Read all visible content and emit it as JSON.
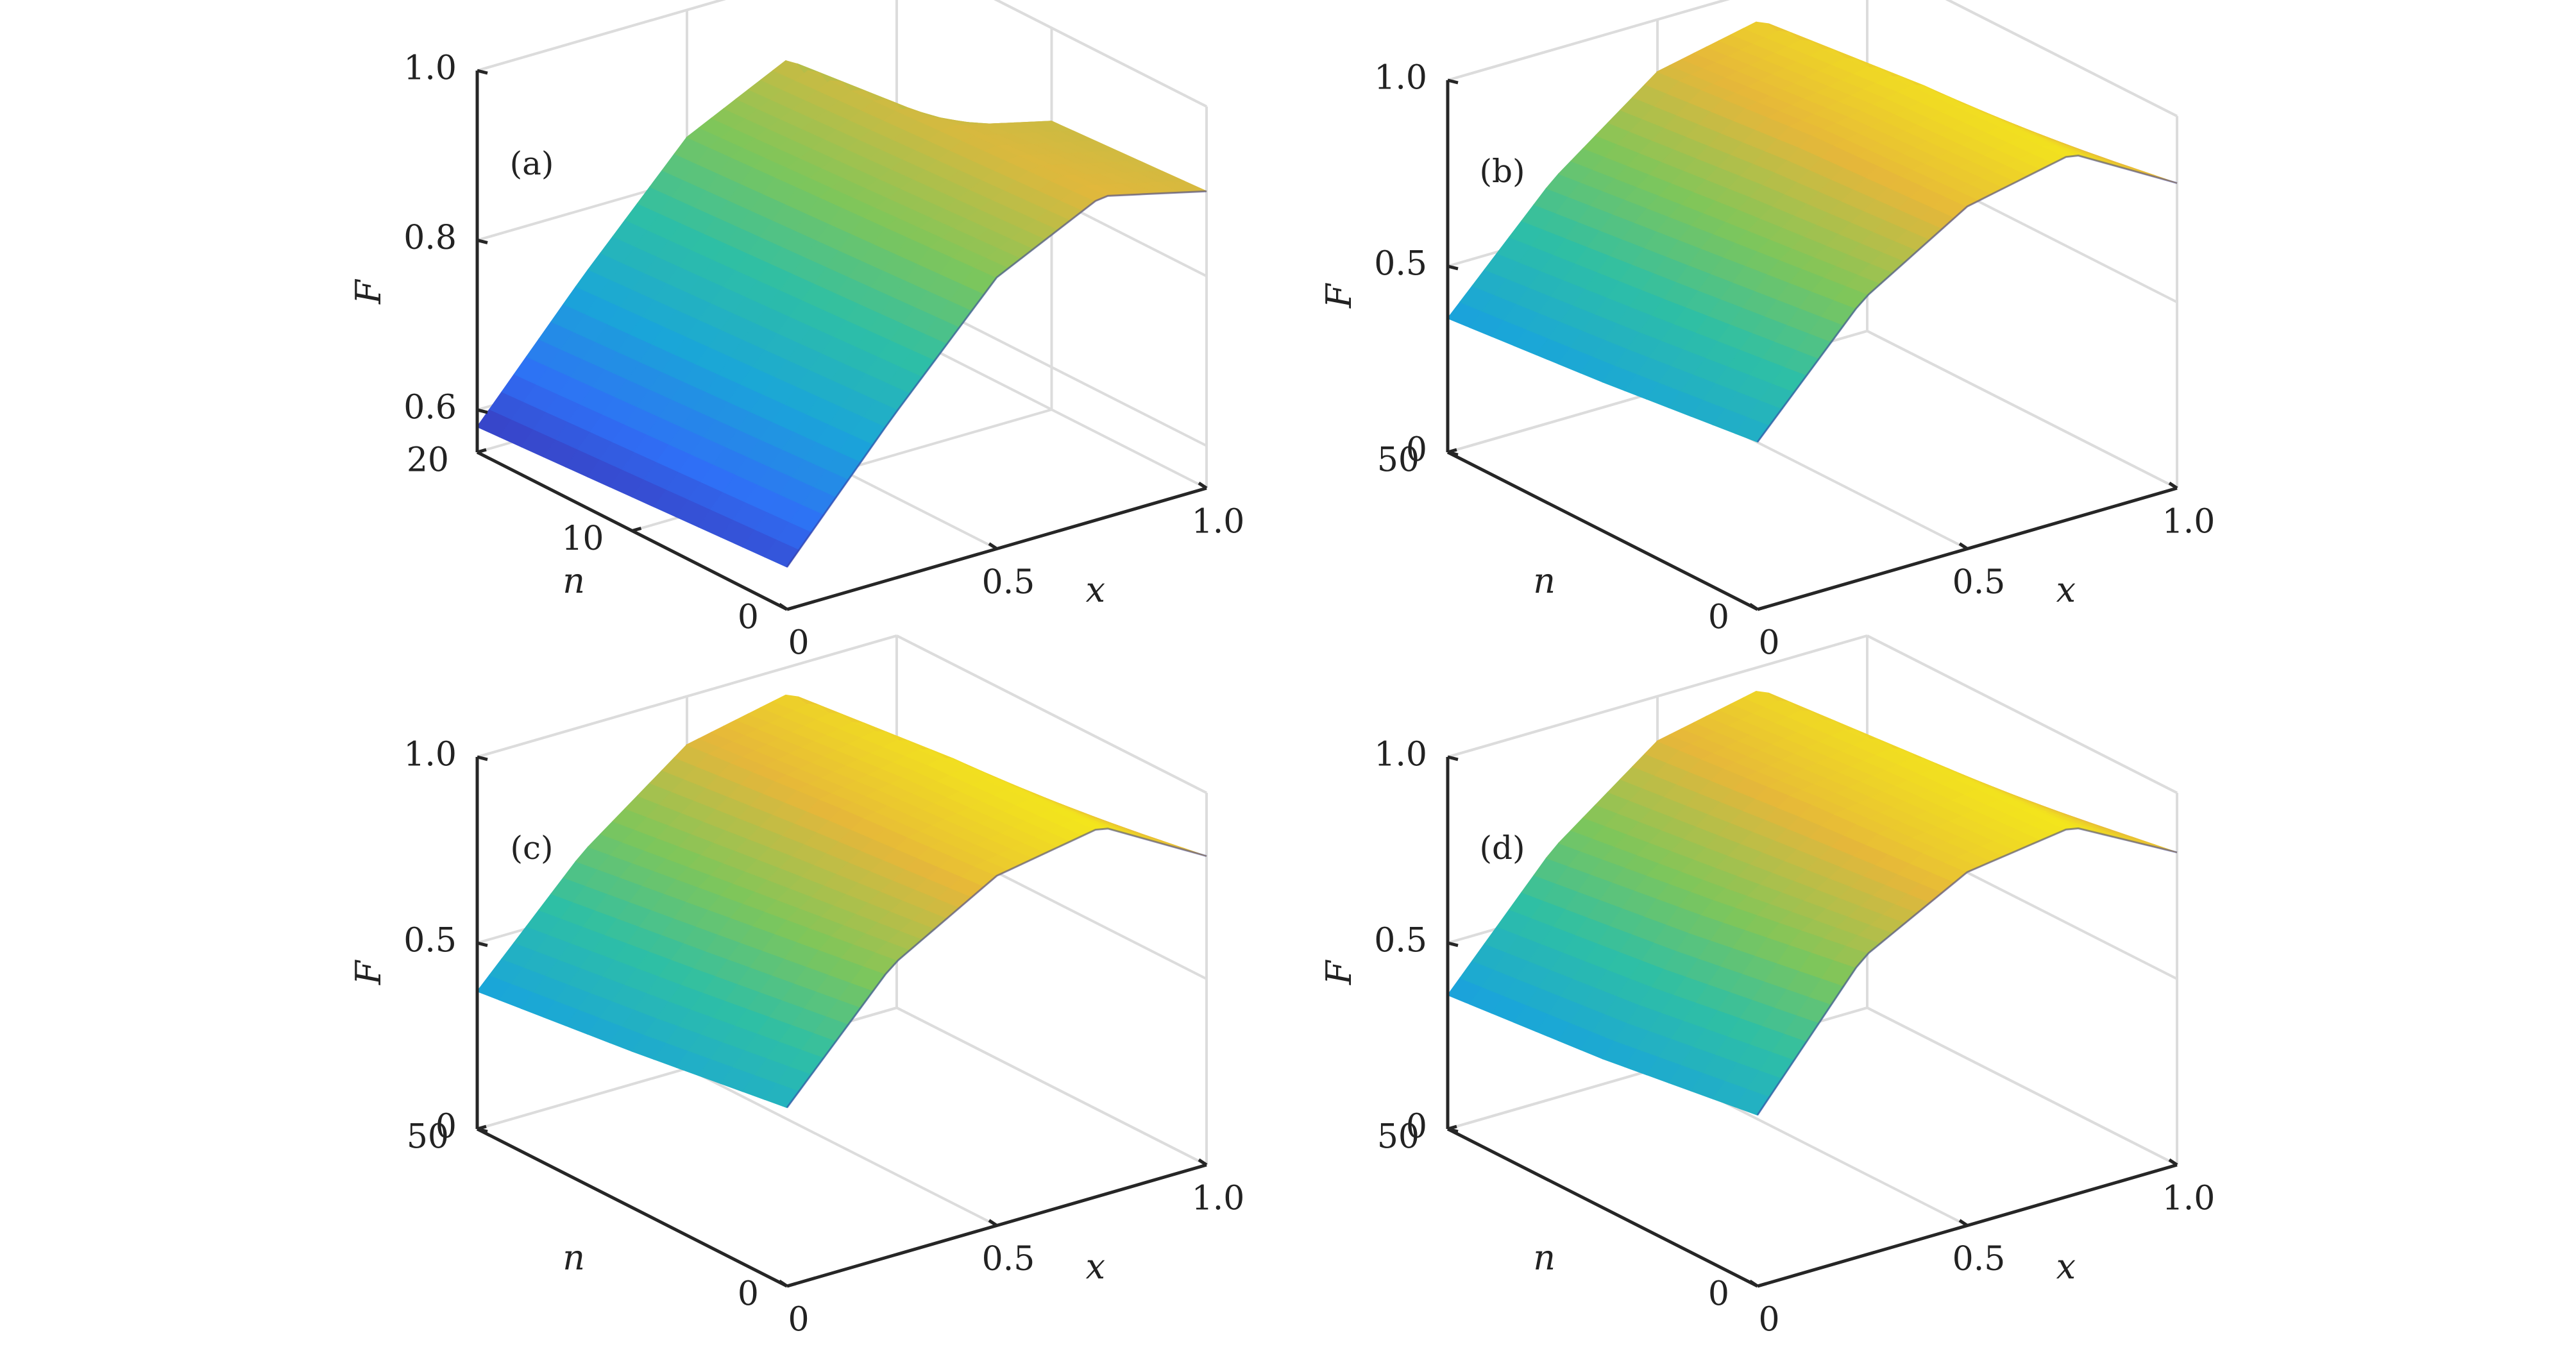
{
  "figure": {
    "colormap": [
      "#3e26a8",
      "#2f6ff6",
      "#1aa6d8",
      "#2ebfa5",
      "#7fc65a",
      "#e6b73a",
      "#f9fb0e"
    ],
    "grid_color": "#dcdcdc",
    "axis_color": "#262626"
  },
  "chart_data": [
    {
      "type": "surface",
      "panel_label": "(a)",
      "xlabel": "x",
      "ylabel": "n",
      "zlabel": "F",
      "xlim": [
        0,
        1.0
      ],
      "ylim": [
        0,
        20
      ],
      "zlim": [
        0.55,
        1.0
      ],
      "x_ticks": [
        "0",
        "0.5",
        "1.0"
      ],
      "y_ticks": [
        "0",
        "10",
        "20"
      ],
      "z_ticks": [
        "0.6",
        "0.8",
        "1.0"
      ],
      "grid": true,
      "surface_samples": {
        "x": [
          0,
          0.25,
          0.5,
          0.75,
          1.0
        ],
        "n": [
          0,
          10,
          20
        ],
        "F": [
          [
            0.6,
            0.74,
            0.87,
            0.93,
            0.9
          ],
          [
            0.59,
            0.73,
            0.86,
            0.92,
            0.89
          ],
          [
            0.58,
            0.72,
            0.85,
            0.91,
            0.71
          ]
        ]
      }
    },
    {
      "type": "surface",
      "panel_label": "(b)",
      "xlabel": "x",
      "ylabel": "n",
      "zlabel": "F",
      "xlim": [
        0,
        1.0
      ],
      "ylim": [
        0,
        50
      ],
      "zlim": [
        0,
        1.0
      ],
      "x_ticks": [
        "0",
        "0.5",
        "1.0"
      ],
      "y_ticks": [
        "0",
        "50"
      ],
      "z_ticks": [
        "0",
        "0.5",
        "1.0"
      ],
      "grid": true,
      "surface_samples": {
        "x": [
          0,
          0.25,
          0.5,
          0.75,
          1.0
        ],
        "n": [
          0,
          25,
          50
        ],
        "F": [
          [
            0.45,
            0.75,
            0.92,
            0.98,
            0.82
          ],
          [
            0.4,
            0.7,
            0.9,
            0.96,
            0.75
          ],
          [
            0.36,
            0.65,
            0.86,
            0.92,
            0.62
          ]
        ]
      }
    },
    {
      "type": "surface",
      "panel_label": "(c)",
      "xlabel": "x",
      "ylabel": "n",
      "zlabel": "F",
      "xlim": [
        0,
        1.0
      ],
      "ylim": [
        0,
        50
      ],
      "zlim": [
        0,
        1.0
      ],
      "x_ticks": [
        "0",
        "0.5",
        "1.0"
      ],
      "y_ticks": [
        "0",
        "50"
      ],
      "z_ticks": [
        "0",
        "0.5",
        "1.0"
      ],
      "grid": true,
      "surface_samples": {
        "x": [
          0,
          0.25,
          0.5,
          0.75,
          1.0
        ],
        "n": [
          0,
          25,
          50
        ],
        "F": [
          [
            0.48,
            0.78,
            0.94,
            0.99,
            0.83
          ],
          [
            0.42,
            0.72,
            0.91,
            0.97,
            0.76
          ],
          [
            0.37,
            0.66,
            0.87,
            0.93,
            0.63
          ]
        ]
      }
    },
    {
      "type": "surface",
      "panel_label": "(d)",
      "xlabel": "x",
      "ylabel": "n",
      "zlabel": "F",
      "xlim": [
        0,
        1.0
      ],
      "ylim": [
        0,
        50
      ],
      "zlim": [
        0,
        1.0
      ],
      "x_ticks": [
        "0",
        "0.5",
        "1.0"
      ],
      "y_ticks": [
        "0",
        "50"
      ],
      "z_ticks": [
        "0",
        "0.5",
        "1.0"
      ],
      "grid": true,
      "surface_samples": {
        "x": [
          0,
          0.25,
          0.5,
          0.75,
          1.0
        ],
        "n": [
          0,
          25,
          50
        ],
        "F": [
          [
            0.46,
            0.8,
            0.95,
            0.99,
            0.84
          ],
          [
            0.4,
            0.73,
            0.92,
            0.97,
            0.77
          ],
          [
            0.36,
            0.67,
            0.88,
            0.94,
            0.64
          ]
        ]
      }
    }
  ]
}
